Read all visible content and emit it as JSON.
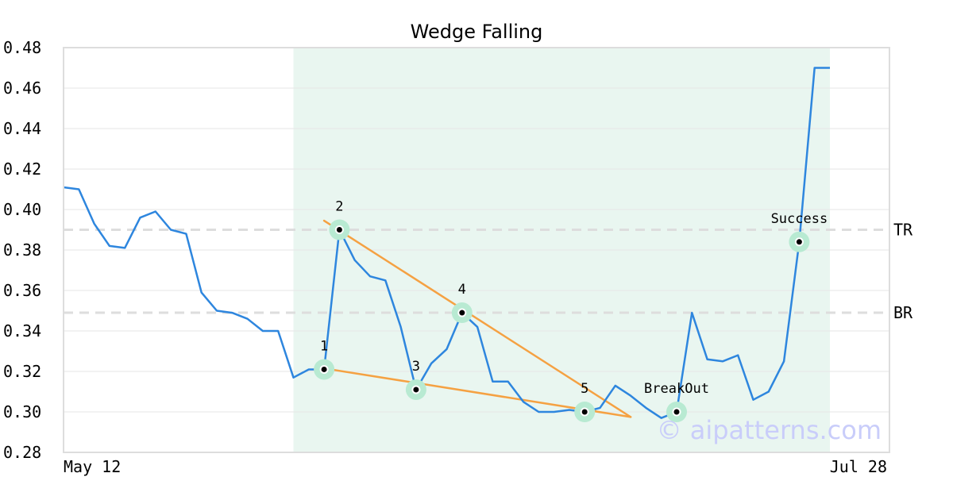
{
  "chart_data": {
    "type": "line",
    "title": "Wedge Falling",
    "xlabel": "",
    "ylabel": "",
    "ylim": [
      0.28,
      0.48
    ],
    "yticks": [
      0.28,
      0.3,
      0.32,
      0.34,
      0.36,
      0.38,
      0.4,
      0.42,
      0.44,
      0.46,
      0.48
    ],
    "x_tick_labels": [
      "May 12",
      "Jul 28"
    ],
    "grid": "horizontal",
    "colors": {
      "line": "#2e86de",
      "trend": "#f5a142",
      "highlight": "#e9f6f0",
      "marker_ring": "#b8ead2",
      "level": "#dddddd",
      "frame": "#dddddd"
    },
    "series": [
      {
        "values": [
          0.411,
          0.41,
          0.393,
          0.382,
          0.381,
          0.396,
          0.399,
          0.39,
          0.388,
          0.359,
          0.35,
          0.349,
          0.346,
          0.34,
          0.34,
          0.317,
          0.321,
          0.321,
          0.39,
          0.375,
          0.367,
          0.365,
          0.342,
          0.311,
          0.324,
          0.331,
          0.349,
          0.342,
          0.315,
          0.315,
          0.305,
          0.3,
          0.3,
          0.301,
          0.3,
          0.302,
          0.313,
          0.308,
          0.302,
          0.297,
          0.3,
          0.349,
          0.326,
          0.325,
          0.328,
          0.306,
          0.31,
          0.325,
          0.384,
          0.47,
          0.47
        ]
      }
    ],
    "highlight_range": {
      "start_index": 15,
      "end_index": 50
    },
    "levels": [
      {
        "label": "TR",
        "value": 0.39
      },
      {
        "label": "BR",
        "value": 0.349
      }
    ],
    "trendlines": [
      {
        "start": {
          "index": 17,
          "value": 0.3945
        },
        "end": {
          "index": 37,
          "value": 0.2975
        }
      },
      {
        "start": {
          "index": 17,
          "value": 0.3215
        },
        "end": {
          "index": 37,
          "value": 0.2975
        }
      }
    ],
    "points": [
      {
        "label": "1",
        "index": 17,
        "value": 0.321
      },
      {
        "label": "2",
        "index": 18,
        "value": 0.39
      },
      {
        "label": "3",
        "index": 23,
        "value": 0.311
      },
      {
        "label": "4",
        "index": 26,
        "value": 0.349
      },
      {
        "label": "5",
        "index": 34,
        "value": 0.3
      },
      {
        "label": "BreakOut",
        "index": 40,
        "value": 0.3
      },
      {
        "label": "Success",
        "index": 48,
        "value": 0.384
      }
    ]
  },
  "watermark": "© aipatterns.com"
}
